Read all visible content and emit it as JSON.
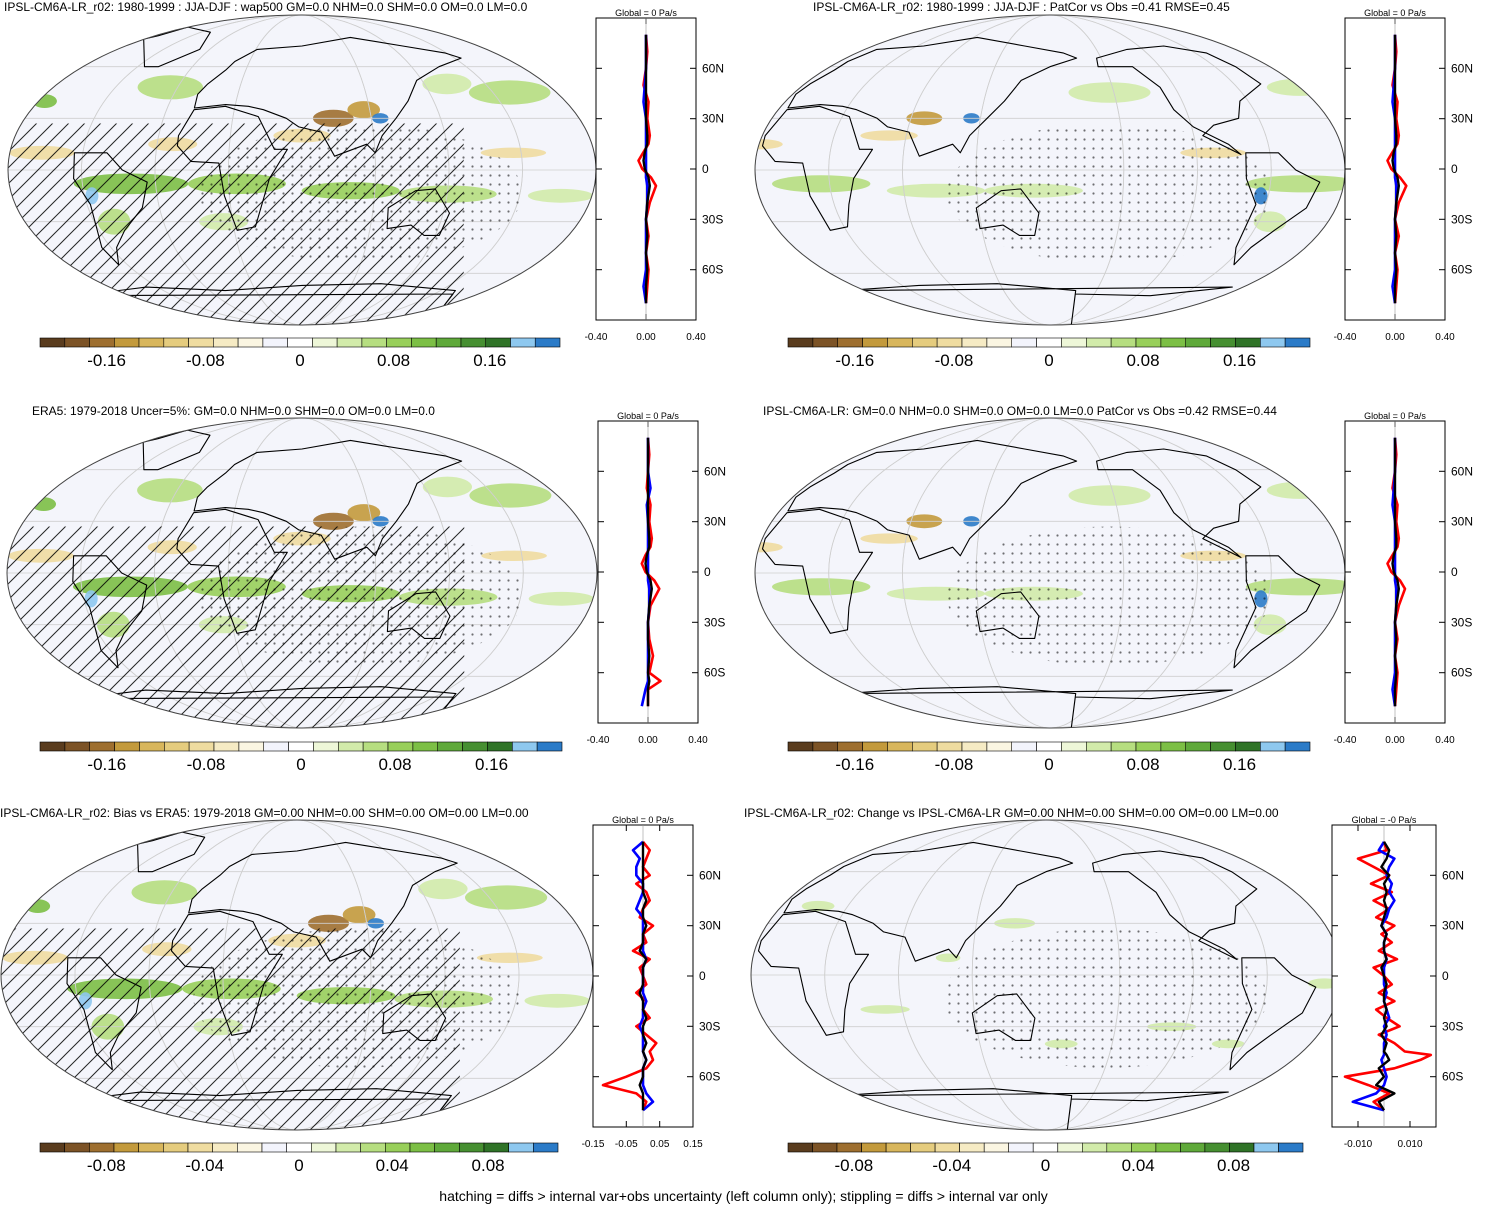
{
  "colors": {
    "scale": [
      "#5a3c1e",
      "#7c5326",
      "#9e6f2f",
      "#c39a3c",
      "#d8b65c",
      "#e5cc7e",
      "#efdca0",
      "#f6ebc4",
      "#fbf6e2",
      "#f3f4fc",
      "#ffffff",
      "#eef7d8",
      "#d2ebaa",
      "#b6de80",
      "#98cf5a",
      "#7cbf45",
      "#5fa93a",
      "#468f31",
      "#2f7327",
      "#8ec8ef",
      "#2b7bc8"
    ],
    "ocean": "#f4f5fb",
    "red": "#ff0000",
    "blue": "#0000ff",
    "black": "#000000"
  },
  "footnote": "hatching = diffs > internal var+obs uncertainty (left column only); stippling = diffs > internal var only",
  "chart_data": [
    {
      "type": "heatmap",
      "id": "p1",
      "title": "IPSL-CM6A-LR_r02: 1980-1999 : JJA-DJF : wap500 GM=0.0 NHM=0.0 SHM=0.0 OM=0.0 LM=0.0",
      "colorbar": {
        "ticks": [
          "-0.16",
          "-0.08",
          "0",
          "0.08",
          "0.16"
        ]
      },
      "profile": {
        "header": "Global = 0 Pa/s",
        "xticks": [
          "-0.40",
          "0.00",
          "0.40"
        ],
        "xlim": [
          -0.4,
          0.4
        ],
        "yticks": [
          "60N",
          "30N",
          "0",
          "30S",
          "60S"
        ],
        "lat": [
          -80,
          -70,
          -60,
          -50,
          -40,
          -30,
          -20,
          -10,
          -5,
          0,
          5,
          10,
          15,
          20,
          30,
          40,
          50,
          60,
          70,
          80
        ],
        "series": [
          {
            "color": "red",
            "values": [
              0.0,
              0.01,
              0.02,
              0.0,
              0.02,
              0.0,
              0.03,
              0.08,
              0.04,
              -0.03,
              -0.06,
              -0.02,
              0.02,
              0.03,
              0.01,
              0.02,
              -0.02,
              0.0,
              0.01,
              0.0
            ]
          },
          {
            "color": "blue",
            "values": [
              0.0,
              -0.02,
              0.0,
              0.0,
              0.0,
              0.0,
              0.01,
              0.01,
              0.0,
              0.0,
              0.0,
              0.0,
              0.0,
              0.0,
              0.0,
              -0.02,
              -0.01,
              0.0,
              0.0,
              0.0
            ]
          },
          {
            "color": "black",
            "values": [
              0.0,
              0.0,
              0.01,
              0.0,
              0.01,
              0.0,
              0.01,
              0.03,
              0.02,
              -0.01,
              -0.02,
              -0.01,
              0.01,
              0.01,
              0.0,
              0.0,
              0.0,
              0.0,
              0.0,
              0.0
            ]
          }
        ]
      }
    },
    {
      "type": "heatmap",
      "id": "p2",
      "title": "IPSL-CM6A-LR_r02: 1980-1999 : JJA-DJF : PatCor vs Obs =0.41 RMSE=0.45",
      "colorbar": {
        "ticks": [
          "-0.16",
          "-0.08",
          "0",
          "0.08",
          "0.16"
        ]
      },
      "profile": {
        "header": "Global = 0 Pa/s",
        "xticks": [
          "-0.40",
          "0.00",
          "0.40"
        ],
        "xlim": [
          -0.4,
          0.4
        ],
        "yticks": [
          "60N",
          "30N",
          "0",
          "30S",
          "60S"
        ],
        "lat": [
          -80,
          -70,
          -60,
          -50,
          -40,
          -30,
          -20,
          -10,
          -5,
          0,
          5,
          10,
          15,
          20,
          30,
          40,
          50,
          60,
          70,
          80
        ],
        "series": [
          {
            "color": "red",
            "values": [
              0.0,
              0.01,
              0.02,
              0.0,
              0.03,
              0.0,
              0.03,
              0.09,
              0.04,
              -0.03,
              -0.06,
              -0.02,
              0.02,
              0.03,
              0.01,
              0.02,
              -0.02,
              0.0,
              0.01,
              0.0
            ]
          },
          {
            "color": "blue",
            "values": [
              0.0,
              -0.02,
              0.0,
              0.0,
              0.0,
              0.0,
              0.01,
              0.01,
              0.0,
              0.0,
              0.0,
              0.0,
              0.0,
              0.0,
              0.0,
              -0.02,
              -0.01,
              0.0,
              0.0,
              0.0
            ]
          },
          {
            "color": "black",
            "values": [
              0.0,
              0.0,
              0.01,
              0.0,
              0.01,
              0.0,
              0.01,
              0.03,
              0.02,
              -0.01,
              -0.02,
              -0.01,
              0.01,
              0.01,
              0.0,
              0.0,
              0.0,
              0.0,
              0.0,
              0.0
            ]
          }
        ]
      }
    },
    {
      "type": "heatmap",
      "id": "p3",
      "title": "ERA5: 1979-2018 Uncer=5%: GM=0.0 NHM=0.0 SHM=0.0 OM=0.0 LM=0.0",
      "colorbar": {
        "ticks": [
          "-0.16",
          "-0.08",
          "0",
          "0.08",
          "0.16"
        ]
      },
      "profile": {
        "header": "Global = 0 Pa/s",
        "xticks": [
          "-0.40",
          "0.00",
          "0.40"
        ],
        "xlim": [
          -0.4,
          0.4
        ],
        "yticks": [
          "60N",
          "30N",
          "0",
          "30S",
          "60S"
        ],
        "lat": [
          -80,
          -70,
          -65,
          -60,
          -50,
          -40,
          -30,
          -20,
          -10,
          -5,
          0,
          5,
          10,
          15,
          20,
          30,
          40,
          50,
          60,
          70,
          80
        ],
        "series": [
          {
            "color": "red",
            "values": [
              0.0,
              0.0,
              0.1,
              0.01,
              0.04,
              0.01,
              0.0,
              0.02,
              0.09,
              0.05,
              -0.02,
              -0.05,
              -0.02,
              0.02,
              0.03,
              0.01,
              0.02,
              -0.01,
              0.0,
              0.01,
              0.0
            ]
          },
          {
            "color": "blue",
            "values": [
              -0.05,
              -0.02,
              0.0,
              0.0,
              0.0,
              0.0,
              0.0,
              0.01,
              0.01,
              0.0,
              0.0,
              0.0,
              0.0,
              0.0,
              0.0,
              0.0,
              -0.01,
              0.02,
              0.0,
              0.0,
              0.0
            ]
          },
          {
            "color": "black",
            "values": [
              0.0,
              0.0,
              0.01,
              0.0,
              0.01,
              0.0,
              0.0,
              0.01,
              0.03,
              0.02,
              -0.01,
              -0.02,
              -0.01,
              0.01,
              0.01,
              0.0,
              0.0,
              0.0,
              0.0,
              0.0,
              0.0
            ]
          }
        ]
      }
    },
    {
      "type": "heatmap",
      "id": "p4",
      "title": "IPSL-CM6A-LR: GM=0.0 NHM=0.0 SHM=0.0 OM=0.0 LM=0.0 PatCor vs Obs =0.42 RMSE=0.44",
      "colorbar": {
        "ticks": [
          "-0.16",
          "-0.08",
          "0",
          "0.08",
          "0.16"
        ]
      },
      "profile": {
        "header": "Global = 0 Pa/s",
        "xticks": [
          "-0.40",
          "0.00",
          "0.40"
        ],
        "xlim": [
          -0.4,
          0.4
        ],
        "yticks": [
          "60N",
          "30N",
          "0",
          "30S",
          "60S"
        ],
        "lat": [
          -80,
          -70,
          -60,
          -50,
          -40,
          -30,
          -20,
          -10,
          -5,
          0,
          5,
          10,
          15,
          20,
          30,
          40,
          50,
          60,
          70,
          80
        ],
        "series": [
          {
            "color": "red",
            "values": [
              0.0,
              0.01,
              0.02,
              0.0,
              0.02,
              0.0,
              0.03,
              0.08,
              0.04,
              -0.03,
              -0.06,
              -0.02,
              0.02,
              0.03,
              0.01,
              0.02,
              -0.02,
              0.0,
              0.01,
              0.0
            ]
          },
          {
            "color": "blue",
            "values": [
              0.0,
              -0.02,
              0.0,
              0.0,
              0.0,
              0.0,
              0.01,
              0.01,
              0.0,
              0.0,
              0.0,
              0.0,
              0.0,
              0.0,
              0.0,
              -0.02,
              -0.01,
              0.0,
              0.0,
              0.0
            ]
          },
          {
            "color": "black",
            "values": [
              0.0,
              0.0,
              0.01,
              0.0,
              0.01,
              0.0,
              0.01,
              0.03,
              0.02,
              -0.01,
              -0.02,
              -0.01,
              0.01,
              0.01,
              0.0,
              0.0,
              0.0,
              0.0,
              0.0,
              0.0
            ]
          }
        ]
      }
    },
    {
      "type": "heatmap",
      "id": "p5",
      "title": "IPSL-CM6A-LR_r02: Bias vs ERA5: 1979-2018 GM=0.00 NHM=0.00 SHM=0.00 OM=0.00 LM=0.00",
      "colorbar": {
        "ticks": [
          "-0.08",
          "-0.04",
          "0",
          "0.04",
          "0.08"
        ]
      },
      "profile": {
        "header": "Global = 0 Pa/s",
        "xticks": [
          "-0.15",
          "-0.05",
          "0.05",
          "0.15"
        ],
        "xlim": [
          -0.15,
          0.15
        ],
        "yticks": [
          "60N",
          "30N",
          "0",
          "30S",
          "60S"
        ],
        "lat": [
          -80,
          -75,
          -70,
          -65,
          -60,
          -55,
          -50,
          -45,
          -40,
          -35,
          -30,
          -25,
          -20,
          -15,
          -10,
          -5,
          0,
          5,
          10,
          15,
          20,
          25,
          30,
          35,
          40,
          45,
          50,
          55,
          60,
          65,
          70,
          75,
          80
        ],
        "series": [
          {
            "color": "red",
            "values": [
              0.0,
              0.01,
              -0.02,
              -0.12,
              -0.05,
              0.01,
              0.03,
              0.02,
              0.04,
              0.01,
              -0.02,
              0.02,
              0.0,
              0.01,
              -0.02,
              0.01,
              0.0,
              -0.01,
              0.02,
              -0.03,
              0.01,
              0.0,
              0.03,
              -0.01,
              0.0,
              0.02,
              0.01,
              -0.02,
              0.02,
              0.0,
              0.01,
              0.02,
              0.0
            ]
          },
          {
            "color": "blue",
            "values": [
              0.0,
              0.03,
              0.01,
              0.0,
              0.0,
              0.0,
              0.01,
              0.0,
              0.0,
              0.0,
              -0.01,
              0.0,
              0.0,
              0.01,
              0.0,
              0.0,
              0.0,
              0.0,
              0.01,
              0.0,
              0.0,
              0.0,
              0.0,
              0.0,
              -0.02,
              -0.01,
              0.0,
              0.0,
              -0.02,
              -0.02,
              -0.01,
              -0.03,
              0.0
            ]
          },
          {
            "color": "black",
            "values": [
              0.0,
              0.0,
              0.0,
              -0.01,
              0.0,
              0.0,
              0.01,
              0.0,
              0.01,
              0.0,
              0.0,
              0.01,
              0.0,
              0.0,
              -0.01,
              0.0,
              0.0,
              0.0,
              0.01,
              -0.01,
              0.0,
              0.0,
              0.01,
              0.0,
              0.0,
              0.01,
              0.0,
              0.0,
              0.0,
              0.0,
              0.0,
              0.0,
              0.0
            ]
          }
        ]
      }
    },
    {
      "type": "heatmap",
      "id": "p6",
      "title": "IPSL-CM6A-LR_r02: Change vs IPSL-CM6A-LR GM=0.00 NHM=0.00 SHM=0.00 OM=0.00 LM=0.00",
      "colorbar": {
        "ticks": [
          "-0.08",
          "-0.04",
          "0",
          "0.04",
          "0.08"
        ]
      },
      "profile": {
        "header": "Global = -0 Pa/s",
        "xticks": [
          "-0.010",
          "0.010"
        ],
        "xlim": [
          -0.02,
          0.02
        ],
        "yticks": [
          "60N",
          "30N",
          "0",
          "30S",
          "60S"
        ],
        "lat": [
          -80,
          -75,
          -70,
          -65,
          -60,
          -55,
          -50,
          -47,
          -45,
          -40,
          -35,
          -30,
          -25,
          -20,
          -15,
          -10,
          -5,
          0,
          5,
          10,
          15,
          20,
          25,
          30,
          35,
          40,
          45,
          50,
          55,
          60,
          65,
          70,
          75,
          80
        ],
        "series": [
          {
            "color": "red",
            "values": [
              0.0,
              -0.004,
              0.002,
              -0.006,
              -0.015,
              0.004,
              0.014,
              0.018,
              0.008,
              0.004,
              -0.002,
              0.006,
              0.001,
              -0.003,
              0.004,
              -0.002,
              0.003,
              0.0,
              -0.004,
              0.005,
              -0.002,
              0.003,
              -0.001,
              0.004,
              -0.003,
              0.002,
              -0.004,
              0.003,
              -0.005,
              0.002,
              -0.004,
              -0.01,
              0.001,
              0.0
            ]
          },
          {
            "color": "blue",
            "values": [
              0.0,
              -0.012,
              -0.003,
              0.0,
              0.001,
              0.0,
              -0.001,
              0.0,
              0.0,
              0.0,
              0.001,
              0.0,
              0.002,
              0.001,
              0.0,
              0.001,
              0.0,
              0.0,
              0.0,
              0.001,
              0.0,
              0.0,
              0.001,
              -0.001,
              0.001,
              0.002,
              0.004,
              0.002,
              0.003,
              0.001,
              0.002,
              0.004,
              -0.002,
              0.0
            ]
          },
          {
            "color": "black",
            "values": [
              0.0,
              -0.002,
              0.004,
              -0.003,
              0.0,
              -0.002,
              0.002,
              0.001,
              0.0,
              0.001,
              -0.001,
              0.001,
              0.0,
              0.001,
              0.0,
              0.0,
              0.001,
              0.0,
              -0.001,
              0.001,
              0.0,
              0.0,
              0.001,
              -0.001,
              0.0,
              0.001,
              0.0,
              0.001,
              0.0,
              0.002,
              -0.001,
              0.001,
              0.002,
              0.0
            ]
          }
        ]
      }
    }
  ]
}
